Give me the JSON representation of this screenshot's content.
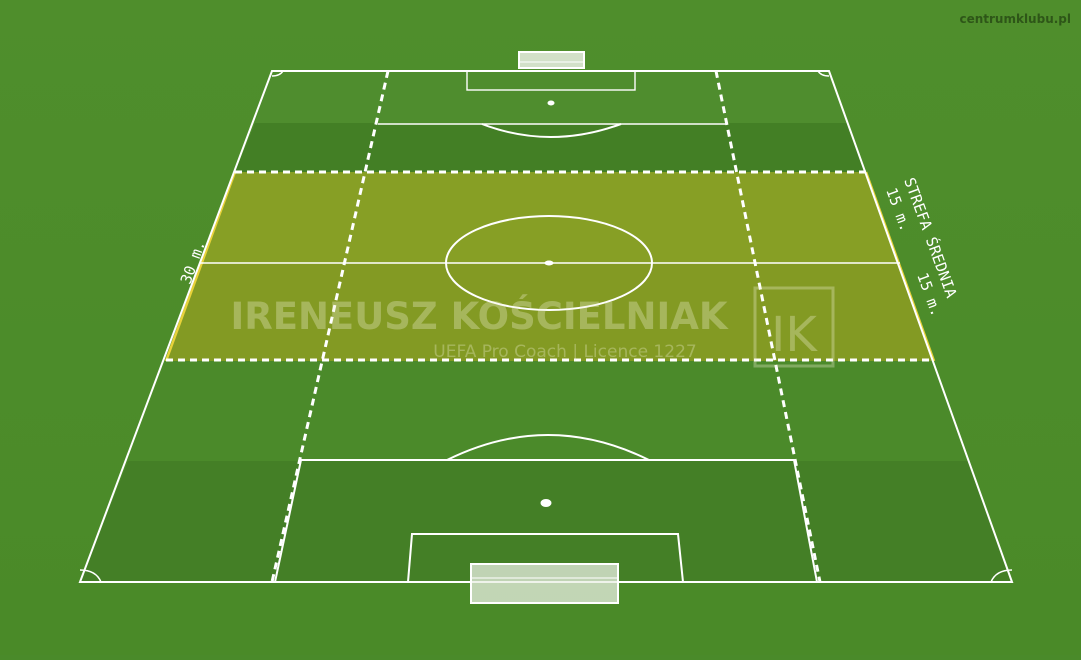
{
  "site_credit": "centrumklubu.pl",
  "watermark": {
    "name": "IRENEUSZ KOŚCIELNIAK",
    "subtitle": "UEFA Pro Coach  |  Licence 1227",
    "logo_letters": "IK"
  },
  "labels": {
    "left_distance": "30 m.",
    "right_upper_distance": "15 m.",
    "right_lower_distance": "15 m.",
    "zone_name": "STREFA ŚREDNIA"
  },
  "colors": {
    "grass_dark": "#3f7d22",
    "grass_light": "#5a9a35",
    "lines": "#ffffff",
    "zone_fill": "#b8b020",
    "zone_edge": "#e8d23a"
  }
}
